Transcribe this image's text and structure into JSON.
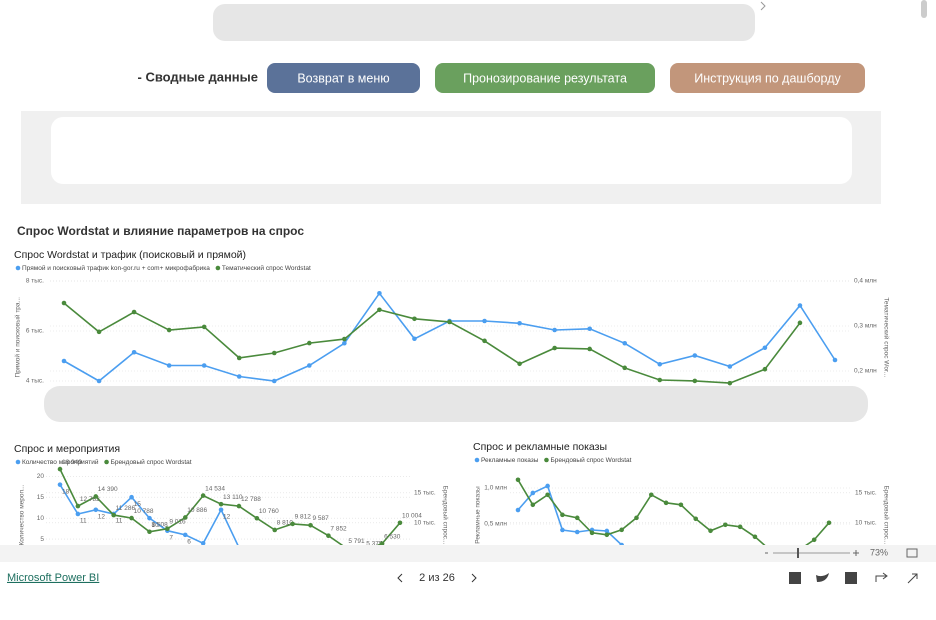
{
  "nav": {
    "section": "- Сводные данные",
    "buttons": [
      "Возврат в меню",
      "Пронозирование результата",
      "Инструкция по дашборду"
    ]
  },
  "page_title": "Спрос Wordstat и влияние параметров на спрос",
  "chart_data": [
    {
      "type": "line",
      "title": "Спрос Wordstat и трафик (поисковый и прямой)",
      "y_label": "Прямой и поисковый тра...",
      "y2_label": "Тематический спрос Wor...",
      "ylim": [
        3500,
        8000
      ],
      "yticks": [
        {
          "value": 8000,
          "label": "8 тыс."
        },
        {
          "value": 6000,
          "label": "6 тыс."
        },
        {
          "value": 4000,
          "label": "4 тыс."
        }
      ],
      "y2lim": [
        150000,
        400000
      ],
      "y2ticks": [
        {
          "value": 400000,
          "label": "0,4 млн"
        },
        {
          "value": 300000,
          "label": "0,3 млн"
        },
        {
          "value": 200000,
          "label": "0,2 млн"
        }
      ],
      "grid": true,
      "series": [
        {
          "name": "Прямой и поисковый трафик kon-gor.ru + com+ микрофабрика",
          "color": "#4b9ef0",
          "values": [
            4800,
            4000,
            5150,
            4620,
            4620,
            4180,
            4000,
            4620,
            5510,
            7510,
            5690,
            6400,
            6400,
            6310,
            6040,
            6090,
            5510,
            4670,
            5020,
            4580,
            5330,
            7020,
            4840
          ]
        },
        {
          "name": "Тематический спрос Wordstat",
          "color": "#4a8a3c",
          "axis": "y2",
          "values": [
            351000,
            287000,
            331000,
            291000,
            298000,
            229000,
            240000,
            262000,
            271000,
            336000,
            316000,
            309000,
            267000,
            216000,
            251000,
            249000,
            207000,
            180000,
            178000,
            173000,
            204000,
            307000,
            null
          ]
        }
      ]
    },
    {
      "type": "line",
      "title": "Спрос и мероприятия",
      "y_label": "Количество мероп...",
      "y2_label": "Брендовый спрос...",
      "ylim": [
        0,
        21.5
      ],
      "yticks": [
        20,
        15,
        10,
        5
      ],
      "y2lim": [
        3800,
        18800
      ],
      "y2ticks": [
        {
          "value": 15000,
          "label": "15 тыс."
        },
        {
          "value": 10000,
          "label": "10 тыс."
        }
      ],
      "grid": true,
      "series": [
        {
          "name": "Количество мероприятий",
          "color": "#4b9ef0",
          "values": [
            18,
            11,
            12,
            11,
            15,
            10,
            7,
            6,
            4,
            12,
            3,
            null,
            null,
            null,
            null,
            null,
            null,
            null,
            null,
            null
          ]
        },
        {
          "name": "Брендовый спрос Wordstat",
          "color": "#4a8a3c",
          "axis": "y2",
          "values": [
            18949,
            12782,
            14390,
            11286,
            10788,
            8508,
            9016,
            10886,
            14534,
            13110,
            12788,
            10760,
            8810,
            9812,
            9587,
            7852,
            5791,
            5375,
            6530,
            10004
          ],
          "value_labels": [
            "18 949",
            "12 782",
            "14 390",
            "11 286",
            "10 788",
            "8 508",
            "9 016",
            "10 886",
            "14 534",
            "13 110",
            "12 788",
            "10 760",
            "8 810",
            "9 812",
            "9 587",
            "7 852",
            "5 791",
            "5 375",
            "6 530",
            "10 004"
          ]
        }
      ]
    },
    {
      "type": "line",
      "title": "Спрос и рекламные показы",
      "y_label": "Рекламные показы",
      "y2_label": "Брендовый спрос...",
      "ylim": [
        0,
        1250000
      ],
      "yticks": [
        {
          "value": 1000000,
          "label": "1,0 млн"
        },
        {
          "value": 500000,
          "label": "0,5 млн"
        }
      ],
      "y2lim": [
        3800,
        18800
      ],
      "y2ticks": [
        {
          "value": 15000,
          "label": "15 тыс."
        },
        {
          "value": 10000,
          "label": "10 тыс."
        }
      ],
      "grid": true,
      "series": [
        {
          "name": "Рекламные показы",
          "color": "#4b9ef0",
          "values": [
            694000,
            931000,
            1028000,
            417000,
            389000,
            417000,
            403000,
            208000,
            null,
            null,
            null,
            null,
            null,
            null,
            null,
            null,
            null,
            null,
            null,
            null,
            null,
            null
          ]
        },
        {
          "name": "Брендовый спрос Wordstat",
          "color": "#4a8a3c",
          "axis": "y2",
          "values": [
            17170,
            13000,
            14670,
            11330,
            10830,
            8330,
            8000,
            8830,
            10830,
            14670,
            13330,
            13000,
            10670,
            8670,
            9670,
            9330,
            7670,
            5500,
            4670,
            5500,
            7170,
            10000
          ]
        }
      ]
    }
  ],
  "footer": {
    "zoom": "73%",
    "brand": "Microsoft Power BI",
    "page": "2 из 26"
  }
}
